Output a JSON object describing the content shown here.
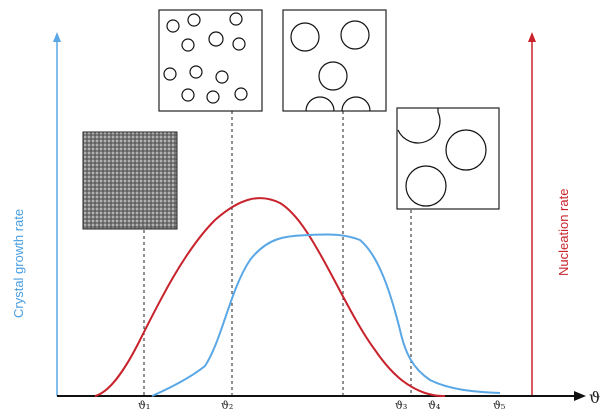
{
  "y_left_label": "Crystal growth rate",
  "y_right_label": "Nucleation rate",
  "x_axis_symbol": "ϑ",
  "x_tick_labels": [
    "ϑ₁",
    "ϑ₂",
    "ϑ₃",
    "ϑ₄",
    "ϑ₅"
  ],
  "colors": {
    "growth_curve": "#5aa7e6",
    "nucleation_curve": "#c8232c",
    "axis": "#111111",
    "texture": "#6a6a6a"
  },
  "insets": [
    {
      "name": "fine-grained-texture"
    },
    {
      "name": "many-small-grains"
    },
    {
      "name": "medium-grains"
    },
    {
      "name": "few-large-grains"
    }
  ]
}
